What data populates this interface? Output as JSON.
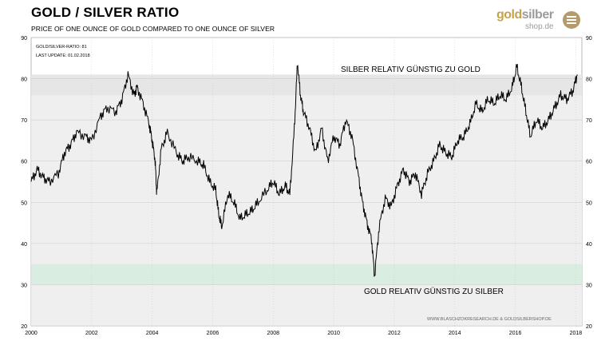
{
  "header": {
    "title": "GOLD / SILVER  RATIO",
    "subtitle": "PRICE OF ONE OUNCE OF GOLD COMPARED TO ONE OUNCE OF SILVER",
    "logo_word_gold": "gold",
    "logo_word_silber": "silber",
    "logo_sub": "shop.de"
  },
  "colors": {
    "background_band": "#efefef",
    "upper_band": "#e6e6e6",
    "lower_band": "#d9eee1",
    "line": "#000000",
    "logo_gold": "#c8a24a"
  },
  "chart_data": {
    "type": "line",
    "info_line1": "GOLD/SILVER-RATIO:  81",
    "info_line2": "LAST UPDATE:  01.02.2018",
    "annotation_upper": "SILBER RELATIV GÜNSTIG ZU GOLD",
    "annotation_lower": "GOLD RELATIV GÜNSTIG ZU SILBER",
    "source": "WWW.BLASCHZOKRESEARCH.DE   &  GOLDSILBERSHOP.DE",
    "xlim": [
      2000,
      2018.2
    ],
    "ylim": [
      20,
      90
    ],
    "x_ticks": [
      "2000",
      "2002",
      "2004",
      "2006",
      "2008",
      "2010",
      "2012",
      "2014",
      "2016",
      "2018"
    ],
    "y_ticks": [
      "20",
      "30",
      "40",
      "50",
      "60",
      "70",
      "80",
      "90"
    ],
    "upper_band": [
      76,
      81
    ],
    "lower_band": [
      30,
      35
    ],
    "grid": true,
    "series": [
      {
        "x": [
          2000.0,
          2000.2,
          2000.4,
          2000.6,
          2000.9,
          2001.1,
          2001.3,
          2001.5,
          2001.8,
          2002.0,
          2002.3,
          2002.5,
          2002.8,
          2003.0,
          2003.2,
          2003.4,
          2003.5,
          2003.7,
          2003.9,
          2004.0,
          2004.1,
          2004.15,
          2004.3,
          2004.5,
          2004.8,
          2005.0,
          2005.2,
          2005.5,
          2005.7,
          2005.9,
          2006.1,
          2006.2,
          2006.3,
          2006.5,
          2006.7,
          2006.9,
          2007.1,
          2007.3,
          2007.5,
          2007.8,
          2008.0,
          2008.2,
          2008.4,
          2008.55,
          2008.7,
          2008.8,
          2008.9,
          2009.0,
          2009.2,
          2009.4,
          2009.6,
          2009.8,
          2010.0,
          2010.2,
          2010.4,
          2010.6,
          2010.8,
          2010.95,
          2011.1,
          2011.25,
          2011.35,
          2011.5,
          2011.7,
          2011.9,
          2012.1,
          2012.3,
          2012.5,
          2012.7,
          2012.9,
          2013.1,
          2013.3,
          2013.5,
          2013.7,
          2013.9,
          2014.1,
          2014.3,
          2014.5,
          2014.7,
          2014.9,
          2015.1,
          2015.3,
          2015.5,
          2015.7,
          2015.9,
          2016.05,
          2016.2,
          2016.35,
          2016.5,
          2016.7,
          2016.9,
          2017.1,
          2017.3,
          2017.5,
          2017.7,
          2017.9,
          2018.05
        ],
        "values": [
          55,
          58,
          56,
          55,
          57,
          62,
          64,
          67,
          66,
          65,
          71,
          73,
          72,
          75,
          81,
          76,
          78,
          74,
          69,
          65,
          60,
          52,
          63,
          67,
          62,
          60,
          61,
          60,
          59,
          55,
          53,
          47,
          44,
          52,
          50,
          46,
          47,
          48,
          50,
          53,
          55,
          52,
          54,
          52,
          68,
          84,
          76,
          72,
          68,
          62,
          68,
          60,
          66,
          64,
          70,
          66,
          57,
          50,
          45,
          41,
          32,
          44,
          51,
          49,
          54,
          58,
          55,
          57,
          52,
          57,
          60,
          64,
          62,
          61,
          65,
          66,
          69,
          74,
          72,
          75,
          74,
          76,
          75,
          78,
          83,
          78,
          72,
          66,
          70,
          68,
          70,
          73,
          76,
          75,
          77,
          81
        ]
      }
    ]
  }
}
